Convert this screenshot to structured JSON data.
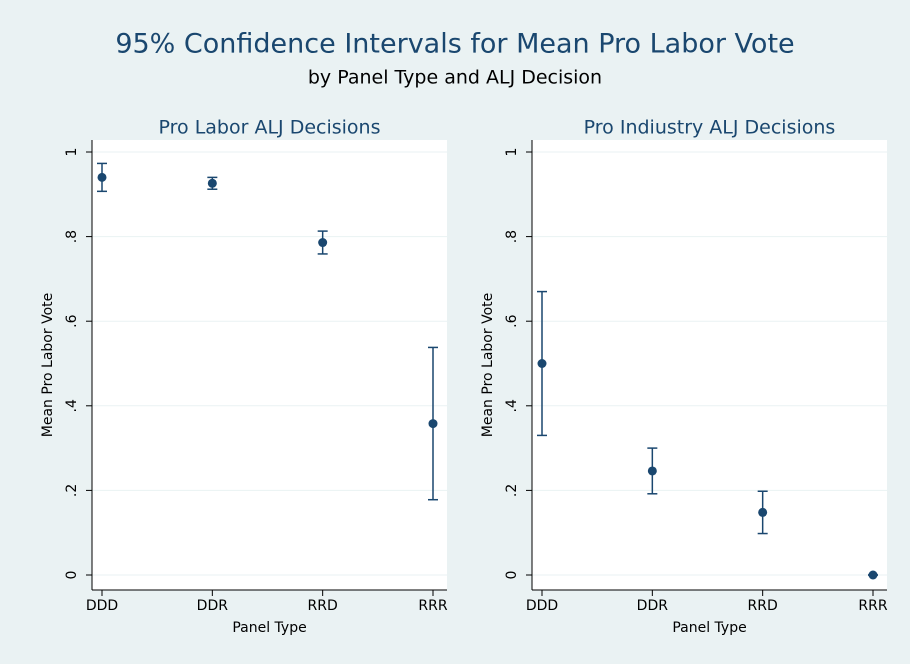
{
  "chart_data": {
    "type": "errorbar",
    "title": "95% Confidence Intervals for Mean Pro Labor Vote",
    "subtitle": "by Panel Type and ALJ Decision",
    "xlabel": "Panel Type",
    "ylabel": "Mean Pro Labor Vote",
    "color": "#1a476f",
    "grid": true,
    "categories": [
      "DDD",
      "DDR",
      "RRD",
      "RRR"
    ],
    "ylim": [
      0,
      1
    ],
    "yticks": [
      0,
      {
        "value": 0.2,
        "label": ".2"
      },
      {
        "value": 0.4,
        "label": ".4"
      },
      {
        "value": 0.6,
        "label": ".6"
      },
      {
        "value": 0.8,
        "label": ".8"
      },
      1
    ],
    "panels": [
      {
        "title": "Pro Labor ALJ Decisions",
        "values": [
          0.94,
          0.926,
          0.786,
          0.358
        ],
        "lower": [
          0.907,
          0.912,
          0.759,
          0.178
        ],
        "upper": [
          0.973,
          0.94,
          0.813,
          0.538
        ]
      },
      {
        "title": "Pro Indiustry ALJ Decisions",
        "values": [
          0.5,
          0.246,
          0.148,
          0
        ],
        "lower": [
          0.33,
          0.192,
          0.098,
          0
        ],
        "upper": [
          0.67,
          0.3,
          0.198,
          0
        ]
      }
    ]
  }
}
